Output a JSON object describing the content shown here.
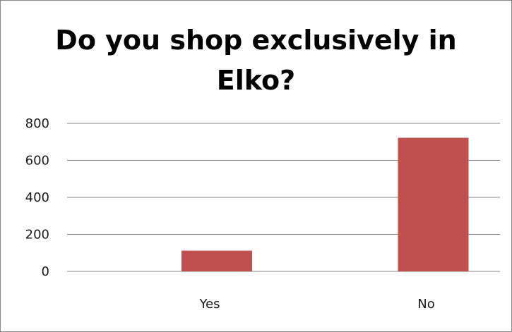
{
  "chart_data": {
    "type": "bar",
    "title_lines": [
      "Do you shop exclusively in",
      "Elko?"
    ],
    "categories": [
      "Yes",
      "No"
    ],
    "series": [
      {
        "values": [
          112,
          722
        ]
      }
    ],
    "ylim": [
      0,
      800
    ],
    "yticks": [
      "0",
      "200",
      "400",
      "600",
      "800"
    ],
    "grid": true,
    "legend": "none",
    "bar_color": "#c0504d",
    "grid_color": "#868686"
  }
}
